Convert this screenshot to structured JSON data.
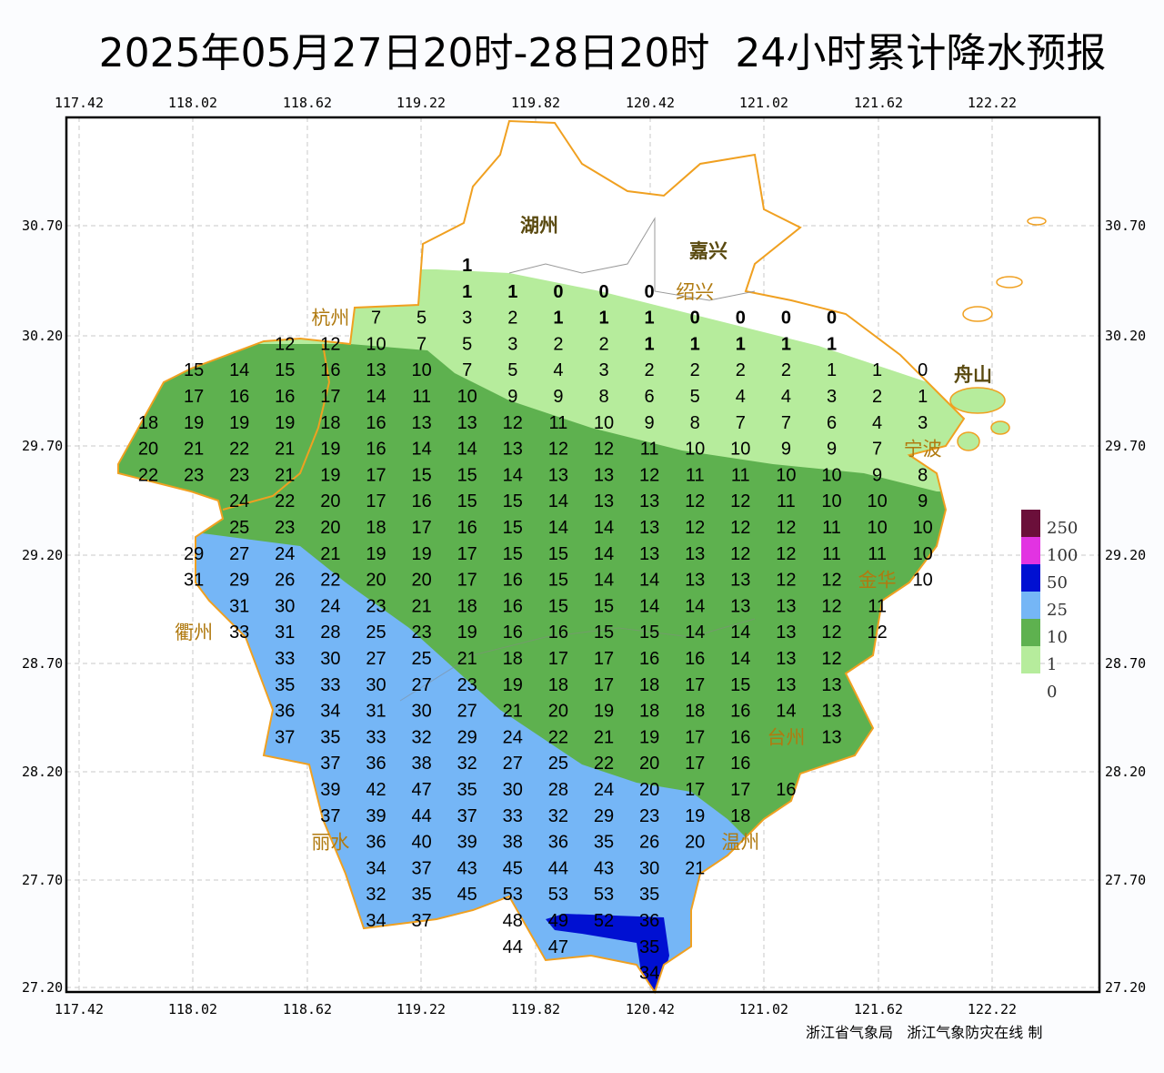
{
  "title": "2025年05月27日20时-28日20时  24小时累计降水预报",
  "footer": "浙江省气象局   浙江气象防灾在线 制",
  "axes": {
    "lon_ticks": [
      "117.42",
      "118.02",
      "118.62",
      "119.22",
      "119.82",
      "120.42",
      "121.02",
      "121.62",
      "122.22"
    ],
    "lat_ticks": [
      "30.70",
      "30.20",
      "29.70",
      "29.20",
      "28.70",
      "28.20",
      "27.70",
      "27.20"
    ],
    "grid": true
  },
  "legend": {
    "levels": [
      {
        "label": "250",
        "color": "#6b0f3a"
      },
      {
        "label": "100",
        "color": "#e233e2"
      },
      {
        "label": "50",
        "color": "#0010d2"
      },
      {
        "label": "25",
        "color": "#75b6f6"
      },
      {
        "label": "10",
        "color": "#5eb14f"
      },
      {
        "label": "1",
        "color": "#b6ec9c"
      },
      {
        "label": "0",
        "color": "#ffffff"
      }
    ]
  },
  "cities": [
    {
      "name": "湖州",
      "style": "dark"
    },
    {
      "name": "嘉兴",
      "style": "dark"
    },
    {
      "name": "杭州",
      "style": "gold"
    },
    {
      "name": "绍兴",
      "style": "gold"
    },
    {
      "name": "宁波",
      "style": "gold"
    },
    {
      "name": "舟山",
      "style": "dark"
    },
    {
      "name": "金华",
      "style": "gold"
    },
    {
      "name": "衢州",
      "style": "gold"
    },
    {
      "name": "台州",
      "style": "gold"
    },
    {
      "name": "丽水",
      "style": "gold"
    },
    {
      "name": "温州",
      "style": "gold"
    }
  ],
  "colors": {
    "border": "#f0a020",
    "gridline": "#c8c8c8",
    "frame": "#000000"
  },
  "grid_values": [
    [
      null,
      null,
      null,
      null,
      null,
      null,
      null,
      1,
      null,
      null,
      null,
      null,
      null,
      null,
      null,
      null,
      null,
      null
    ],
    [
      null,
      null,
      null,
      null,
      null,
      null,
      null,
      1,
      1,
      0,
      0,
      0,
      null,
      null,
      null,
      null,
      null,
      null
    ],
    [
      null,
      null,
      null,
      null,
      null,
      7,
      5,
      3,
      2,
      1,
      1,
      1,
      0,
      0,
      0,
      0,
      null,
      null
    ],
    [
      null,
      null,
      null,
      12,
      12,
      10,
      7,
      5,
      3,
      2,
      2,
      1,
      1,
      1,
      1,
      1,
      null,
      null
    ],
    [
      null,
      15,
      14,
      15,
      16,
      13,
      10,
      7,
      5,
      4,
      3,
      2,
      2,
      2,
      2,
      1,
      1,
      0
    ],
    [
      null,
      17,
      16,
      16,
      17,
      14,
      11,
      10,
      9,
      9,
      8,
      6,
      5,
      4,
      4,
      3,
      2,
      1
    ],
    [
      18,
      19,
      19,
      19,
      18,
      16,
      13,
      13,
      12,
      11,
      10,
      9,
      8,
      7,
      7,
      6,
      4,
      3
    ],
    [
      20,
      21,
      22,
      21,
      19,
      16,
      14,
      14,
      13,
      12,
      12,
      11,
      10,
      10,
      9,
      9,
      7,
      null
    ],
    [
      22,
      23,
      23,
      21,
      19,
      17,
      15,
      15,
      14,
      13,
      13,
      12,
      11,
      11,
      10,
      10,
      9,
      8
    ],
    [
      null,
      null,
      24,
      22,
      20,
      17,
      16,
      15,
      15,
      14,
      13,
      13,
      12,
      12,
      11,
      10,
      10,
      9
    ],
    [
      null,
      null,
      25,
      23,
      20,
      18,
      17,
      16,
      15,
      14,
      14,
      13,
      12,
      12,
      12,
      11,
      10,
      10
    ],
    [
      null,
      29,
      27,
      24,
      21,
      19,
      19,
      17,
      15,
      15,
      14,
      13,
      13,
      12,
      12,
      11,
      11,
      10
    ],
    [
      null,
      31,
      29,
      26,
      22,
      20,
      20,
      17,
      16,
      15,
      14,
      14,
      13,
      13,
      12,
      12,
      null,
      10
    ],
    [
      null,
      null,
      31,
      30,
      24,
      23,
      21,
      18,
      16,
      15,
      15,
      14,
      14,
      13,
      13,
      12,
      11,
      null
    ],
    [
      null,
      null,
      33,
      31,
      28,
      25,
      23,
      19,
      16,
      16,
      15,
      15,
      14,
      14,
      13,
      12,
      12,
      null
    ],
    [
      null,
      null,
      null,
      33,
      30,
      27,
      25,
      21,
      18,
      17,
      17,
      16,
      16,
      14,
      13,
      12,
      null,
      null
    ],
    [
      null,
      null,
      null,
      35,
      33,
      30,
      27,
      23,
      19,
      18,
      17,
      18,
      17,
      15,
      13,
      13,
      null,
      null
    ],
    [
      null,
      null,
      null,
      36,
      34,
      31,
      30,
      27,
      21,
      20,
      19,
      18,
      18,
      16,
      14,
      13,
      null,
      null
    ],
    [
      null,
      null,
      null,
      37,
      35,
      33,
      32,
      29,
      24,
      22,
      21,
      19,
      17,
      16,
      null,
      13,
      null,
      null
    ],
    [
      null,
      null,
      null,
      null,
      37,
      36,
      38,
      32,
      27,
      25,
      22,
      20,
      17,
      16,
      null,
      null,
      null,
      null
    ],
    [
      null,
      null,
      null,
      null,
      39,
      42,
      47,
      35,
      30,
      28,
      24,
      20,
      17,
      17,
      16,
      null,
      null,
      null
    ],
    [
      null,
      null,
      null,
      null,
      37,
      39,
      44,
      37,
      33,
      32,
      29,
      23,
      19,
      18,
      null,
      null,
      null,
      null
    ],
    [
      null,
      null,
      null,
      null,
      null,
      36,
      40,
      39,
      38,
      36,
      35,
      26,
      20,
      null,
      null,
      null,
      null,
      null
    ],
    [
      null,
      null,
      null,
      null,
      null,
      34,
      37,
      43,
      45,
      44,
      43,
      30,
      21,
      null,
      null,
      null,
      null,
      null
    ],
    [
      null,
      null,
      null,
      null,
      null,
      32,
      35,
      45,
      53,
      53,
      53,
      35,
      null,
      null,
      null,
      null,
      null,
      null
    ],
    [
      null,
      null,
      null,
      null,
      null,
      34,
      37,
      null,
      48,
      49,
      52,
      36,
      null,
      null,
      null,
      null,
      null,
      null
    ],
    [
      null,
      null,
      null,
      null,
      null,
      null,
      null,
      null,
      44,
      47,
      null,
      35,
      null,
      null,
      null,
      null,
      null,
      null
    ],
    [
      null,
      null,
      null,
      null,
      null,
      null,
      null,
      null,
      null,
      null,
      null,
      34,
      null,
      null,
      null,
      null,
      null,
      null
    ]
  ]
}
